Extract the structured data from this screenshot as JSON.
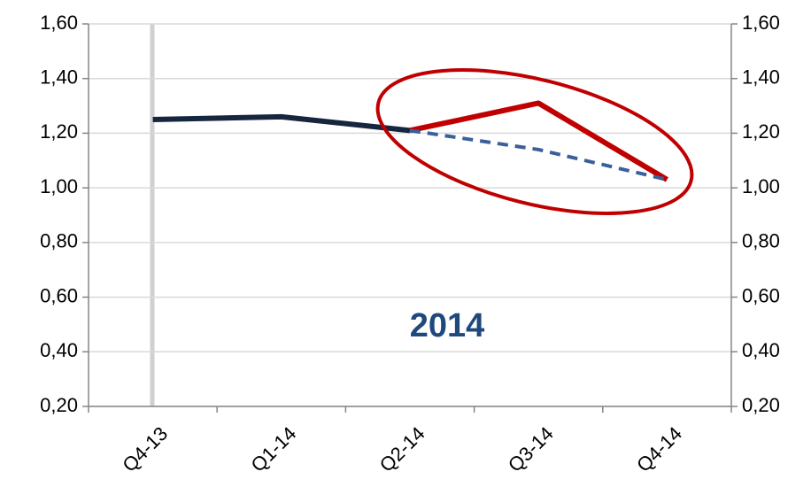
{
  "chart_data": {
    "type": "line",
    "categories": [
      "Q4-13",
      "Q1-14",
      "Q2-14",
      "Q3-14",
      "Q4-14"
    ],
    "series": [
      {
        "color": "#17263f",
        "dash": false,
        "values": [
          1.25,
          1.26,
          1.21,
          null,
          null
        ]
      },
      {
        "color": "#c00000",
        "dash": false,
        "values": [
          null,
          null,
          1.21,
          1.31,
          1.03
        ]
      },
      {
        "color": "#3a5f9a",
        "dash": true,
        "values": [
          null,
          null,
          1.21,
          1.14,
          1.03
        ]
      }
    ],
    "annotation": "2014",
    "ylim": [
      0.2,
      1.6
    ],
    "yticks": [
      {
        "value": 0.2,
        "label": "0,20"
      },
      {
        "value": 0.4,
        "label": "0,40"
      },
      {
        "value": 0.6,
        "label": "0,60"
      },
      {
        "value": 0.8,
        "label": "0,80"
      },
      {
        "value": 1.0,
        "label": "1,00"
      },
      {
        "value": 1.2,
        "label": "1,20"
      },
      {
        "value": 1.4,
        "label": "1,40"
      },
      {
        "value": 1.6,
        "label": "1,60"
      }
    ],
    "y2lim": [
      0.2,
      1.6
    ],
    "y2ticks": [
      {
        "value": 0.2,
        "label": "0,20"
      },
      {
        "value": 0.4,
        "label": "0,40"
      },
      {
        "value": 0.6,
        "label": "0,60"
      },
      {
        "value": 0.8,
        "label": "0,80"
      },
      {
        "value": 1.0,
        "label": "1,00"
      },
      {
        "value": 1.2,
        "label": "1,20"
      },
      {
        "value": 1.4,
        "label": "1,40"
      },
      {
        "value": 1.6,
        "label": "1,60"
      }
    ],
    "grid": true
  }
}
